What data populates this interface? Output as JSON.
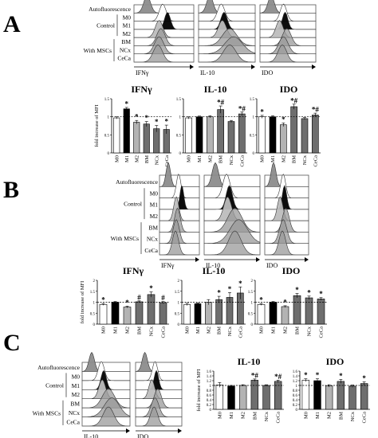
{
  "panels": [
    {
      "letter": "A",
      "hist_rows": [
        "Autofluorescence",
        "M0",
        "M1",
        "M2",
        "BM",
        "NCx",
        "CeCa"
      ],
      "group_labels": {
        "control": "Control",
        "with_mscs": "With MSCs"
      },
      "hist_axis_labels": [
        "IFNγ",
        "IL-10",
        "IDO"
      ]
    },
    {
      "letter": "B",
      "hist_rows": [
        "Autofluorescence",
        "M0",
        "M1",
        "M2",
        "BM",
        "NCx",
        "CeCa"
      ],
      "group_labels": {
        "control": "Control",
        "with_mscs": "With MSCs"
      },
      "hist_axis_labels": [
        "IFNγ",
        "IL-10",
        "IDO"
      ]
    },
    {
      "letter": "C",
      "hist_rows": [
        "Autofluorescence",
        "M0",
        "M1",
        "M2",
        "BM",
        "NCx",
        "CeCa"
      ],
      "group_labels": {
        "control": "Control",
        "with_mscs": "With MSCs"
      },
      "hist_axis_labels": [
        "IL-10",
        "IDO"
      ]
    }
  ],
  "chart_data": [
    {
      "panel": "A",
      "type": "bar",
      "title": "IFNγ",
      "ylabel": "fold increase of MFI",
      "categories": [
        "M0",
        "M1",
        "M2",
        "BM",
        "NCx",
        "CeCa"
      ],
      "values": [
        0.97,
        1.22,
        0.85,
        0.8,
        0.67,
        0.65
      ],
      "errors": [
        0.03,
        0.04,
        0.05,
        0.07,
        0.09,
        0.12
      ],
      "annotations": [
        "",
        "*",
        "*",
        "*",
        "*",
        "*"
      ],
      "ylim": [
        0,
        1.5
      ],
      "yticks": [
        0,
        0.5,
        1,
        1.5
      ],
      "colors": [
        "#ffffff",
        "#000000",
        "#b3b3b3",
        "#6e6e6e",
        "#6e6e6e",
        "#6e6e6e"
      ],
      "reference_line": 1
    },
    {
      "panel": "A",
      "type": "bar",
      "title": "IL-10",
      "ylabel": "",
      "categories": [
        "M0",
        "M1",
        "M2",
        "BM",
        "NCx",
        "CeCa"
      ],
      "values": [
        0.97,
        1.0,
        1.0,
        1.2,
        0.87,
        1.08
      ],
      "errors": [
        0.03,
        0.02,
        0.03,
        0.1,
        0.03,
        0.05
      ],
      "annotations": [
        "",
        "",
        "",
        "*#",
        "",
        "*#"
      ],
      "ylim": [
        0,
        1.5
      ],
      "yticks": [
        0,
        0.5,
        1,
        1.5
      ],
      "colors": [
        "#ffffff",
        "#000000",
        "#b3b3b3",
        "#6e6e6e",
        "#6e6e6e",
        "#6e6e6e"
      ],
      "reference_line": 1
    },
    {
      "panel": "A",
      "type": "bar",
      "title": "IDO",
      "ylabel": "",
      "categories": [
        "M0",
        "M1",
        "M2",
        "BM",
        "NCx",
        "CeCa"
      ],
      "values": [
        1.0,
        1.0,
        0.78,
        1.28,
        0.95,
        1.05
      ],
      "errors": [
        0.04,
        0.03,
        0.05,
        0.07,
        0.03,
        0.05
      ],
      "annotations": [
        "*",
        "",
        "*",
        "*#",
        "",
        "*#"
      ],
      "ylim": [
        0,
        1.5
      ],
      "yticks": [
        0,
        0.5,
        1,
        1.5
      ],
      "colors": [
        "#ffffff",
        "#000000",
        "#b3b3b3",
        "#6e6e6e",
        "#6e6e6e",
        "#6e6e6e"
      ],
      "reference_line": 1
    },
    {
      "panel": "B",
      "type": "bar",
      "title": "IFNγ",
      "ylabel": "fold increase of MFI",
      "categories": [
        "M0",
        "M1",
        "M2",
        "BM",
        "NCx",
        "CeCa"
      ],
      "values": [
        0.9,
        1.0,
        0.78,
        1.02,
        1.35,
        0.98
      ],
      "errors": [
        0.04,
        0.03,
        0.04,
        0.04,
        0.12,
        0.05
      ],
      "annotations": [
        "*",
        "",
        "*",
        "#",
        "*",
        "#"
      ],
      "ylim": [
        0,
        2
      ],
      "yticks": [
        0,
        0.5,
        1,
        1.5,
        2
      ],
      "colors": [
        "#ffffff",
        "#000000",
        "#b3b3b3",
        "#6e6e6e",
        "#6e6e6e",
        "#6e6e6e"
      ],
      "reference_line": 1
    },
    {
      "panel": "B",
      "type": "bar",
      "title": "IL-10",
      "ylabel": "",
      "categories": [
        "M0",
        "M1",
        "M2",
        "BM",
        "NCx",
        "CeCa"
      ],
      "values": [
        0.9,
        0.93,
        1.0,
        1.12,
        1.22,
        1.42
      ],
      "errors": [
        0.05,
        0.03,
        0.12,
        0.15,
        0.22,
        0.28
      ],
      "annotations": [
        "",
        "",
        "",
        "*",
        "*",
        "*"
      ],
      "ylim": [
        0,
        2
      ],
      "yticks": [
        0,
        0.5,
        1,
        1.5,
        2
      ],
      "colors": [
        "#ffffff",
        "#000000",
        "#b3b3b3",
        "#6e6e6e",
        "#6e6e6e",
        "#6e6e6e"
      ],
      "reference_line": 1
    },
    {
      "panel": "B",
      "type": "bar",
      "title": "IDO",
      "ylabel": "",
      "categories": [
        "M0",
        "M1",
        "M2",
        "BM",
        "NCx",
        "CeCa"
      ],
      "values": [
        0.9,
        1.0,
        0.8,
        1.3,
        1.2,
        1.15
      ],
      "errors": [
        0.04,
        0.03,
        0.04,
        0.1,
        0.08,
        0.06
      ],
      "annotations": [
        "*",
        "",
        "*",
        "*",
        "*",
        "*"
      ],
      "ylim": [
        0,
        2
      ],
      "yticks": [
        0,
        0.5,
        1,
        1.5,
        2
      ],
      "colors": [
        "#ffffff",
        "#000000",
        "#b3b3b3",
        "#6e6e6e",
        "#6e6e6e",
        "#6e6e6e"
      ],
      "reference_line": 1
    },
    {
      "panel": "C",
      "type": "bar",
      "title": "IL-10",
      "ylabel": "fold increase of MFI",
      "categories": [
        "M0",
        "M1",
        "M2",
        "BM",
        "NCx",
        "CeCa"
      ],
      "values": [
        1.02,
        0.97,
        1.0,
        1.22,
        1.0,
        1.17
      ],
      "errors": [
        0.1,
        0.03,
        0.03,
        0.05,
        0.03,
        0.05
      ],
      "annotations": [
        "",
        "",
        "",
        "*#",
        "",
        "*#"
      ],
      "ylim": [
        0,
        1.6
      ],
      "yticks": [
        0,
        0.2,
        0.4,
        0.6,
        0.8,
        1,
        1.2,
        1.4,
        1.6
      ],
      "colors": [
        "#ffffff",
        "#000000",
        "#b3b3b3",
        "#6e6e6e",
        "#6e6e6e",
        "#6e6e6e"
      ],
      "reference_line": 1
    },
    {
      "panel": "C",
      "type": "bar",
      "title": "IDO",
      "ylabel": "",
      "categories": [
        "M0",
        "M1",
        "M2",
        "BM",
        "NCx",
        "CeCa"
      ],
      "values": [
        1.22,
        1.2,
        0.98,
        1.17,
        0.97,
        1.08
      ],
      "errors": [
        0.06,
        0.08,
        0.05,
        0.08,
        0.05,
        0.07
      ],
      "annotations": [
        "*",
        "*",
        "",
        "*",
        "",
        "*"
      ],
      "ylim": [
        0,
        1.6
      ],
      "yticks": [
        0,
        0.2,
        0.4,
        0.6,
        0.8,
        1,
        1.2,
        1.4,
        1.6
      ],
      "colors": [
        "#ffffff",
        "#000000",
        "#b3b3b3",
        "#6e6e6e",
        "#6e6e6e",
        "#6e6e6e"
      ],
      "reference_line": 1
    }
  ]
}
